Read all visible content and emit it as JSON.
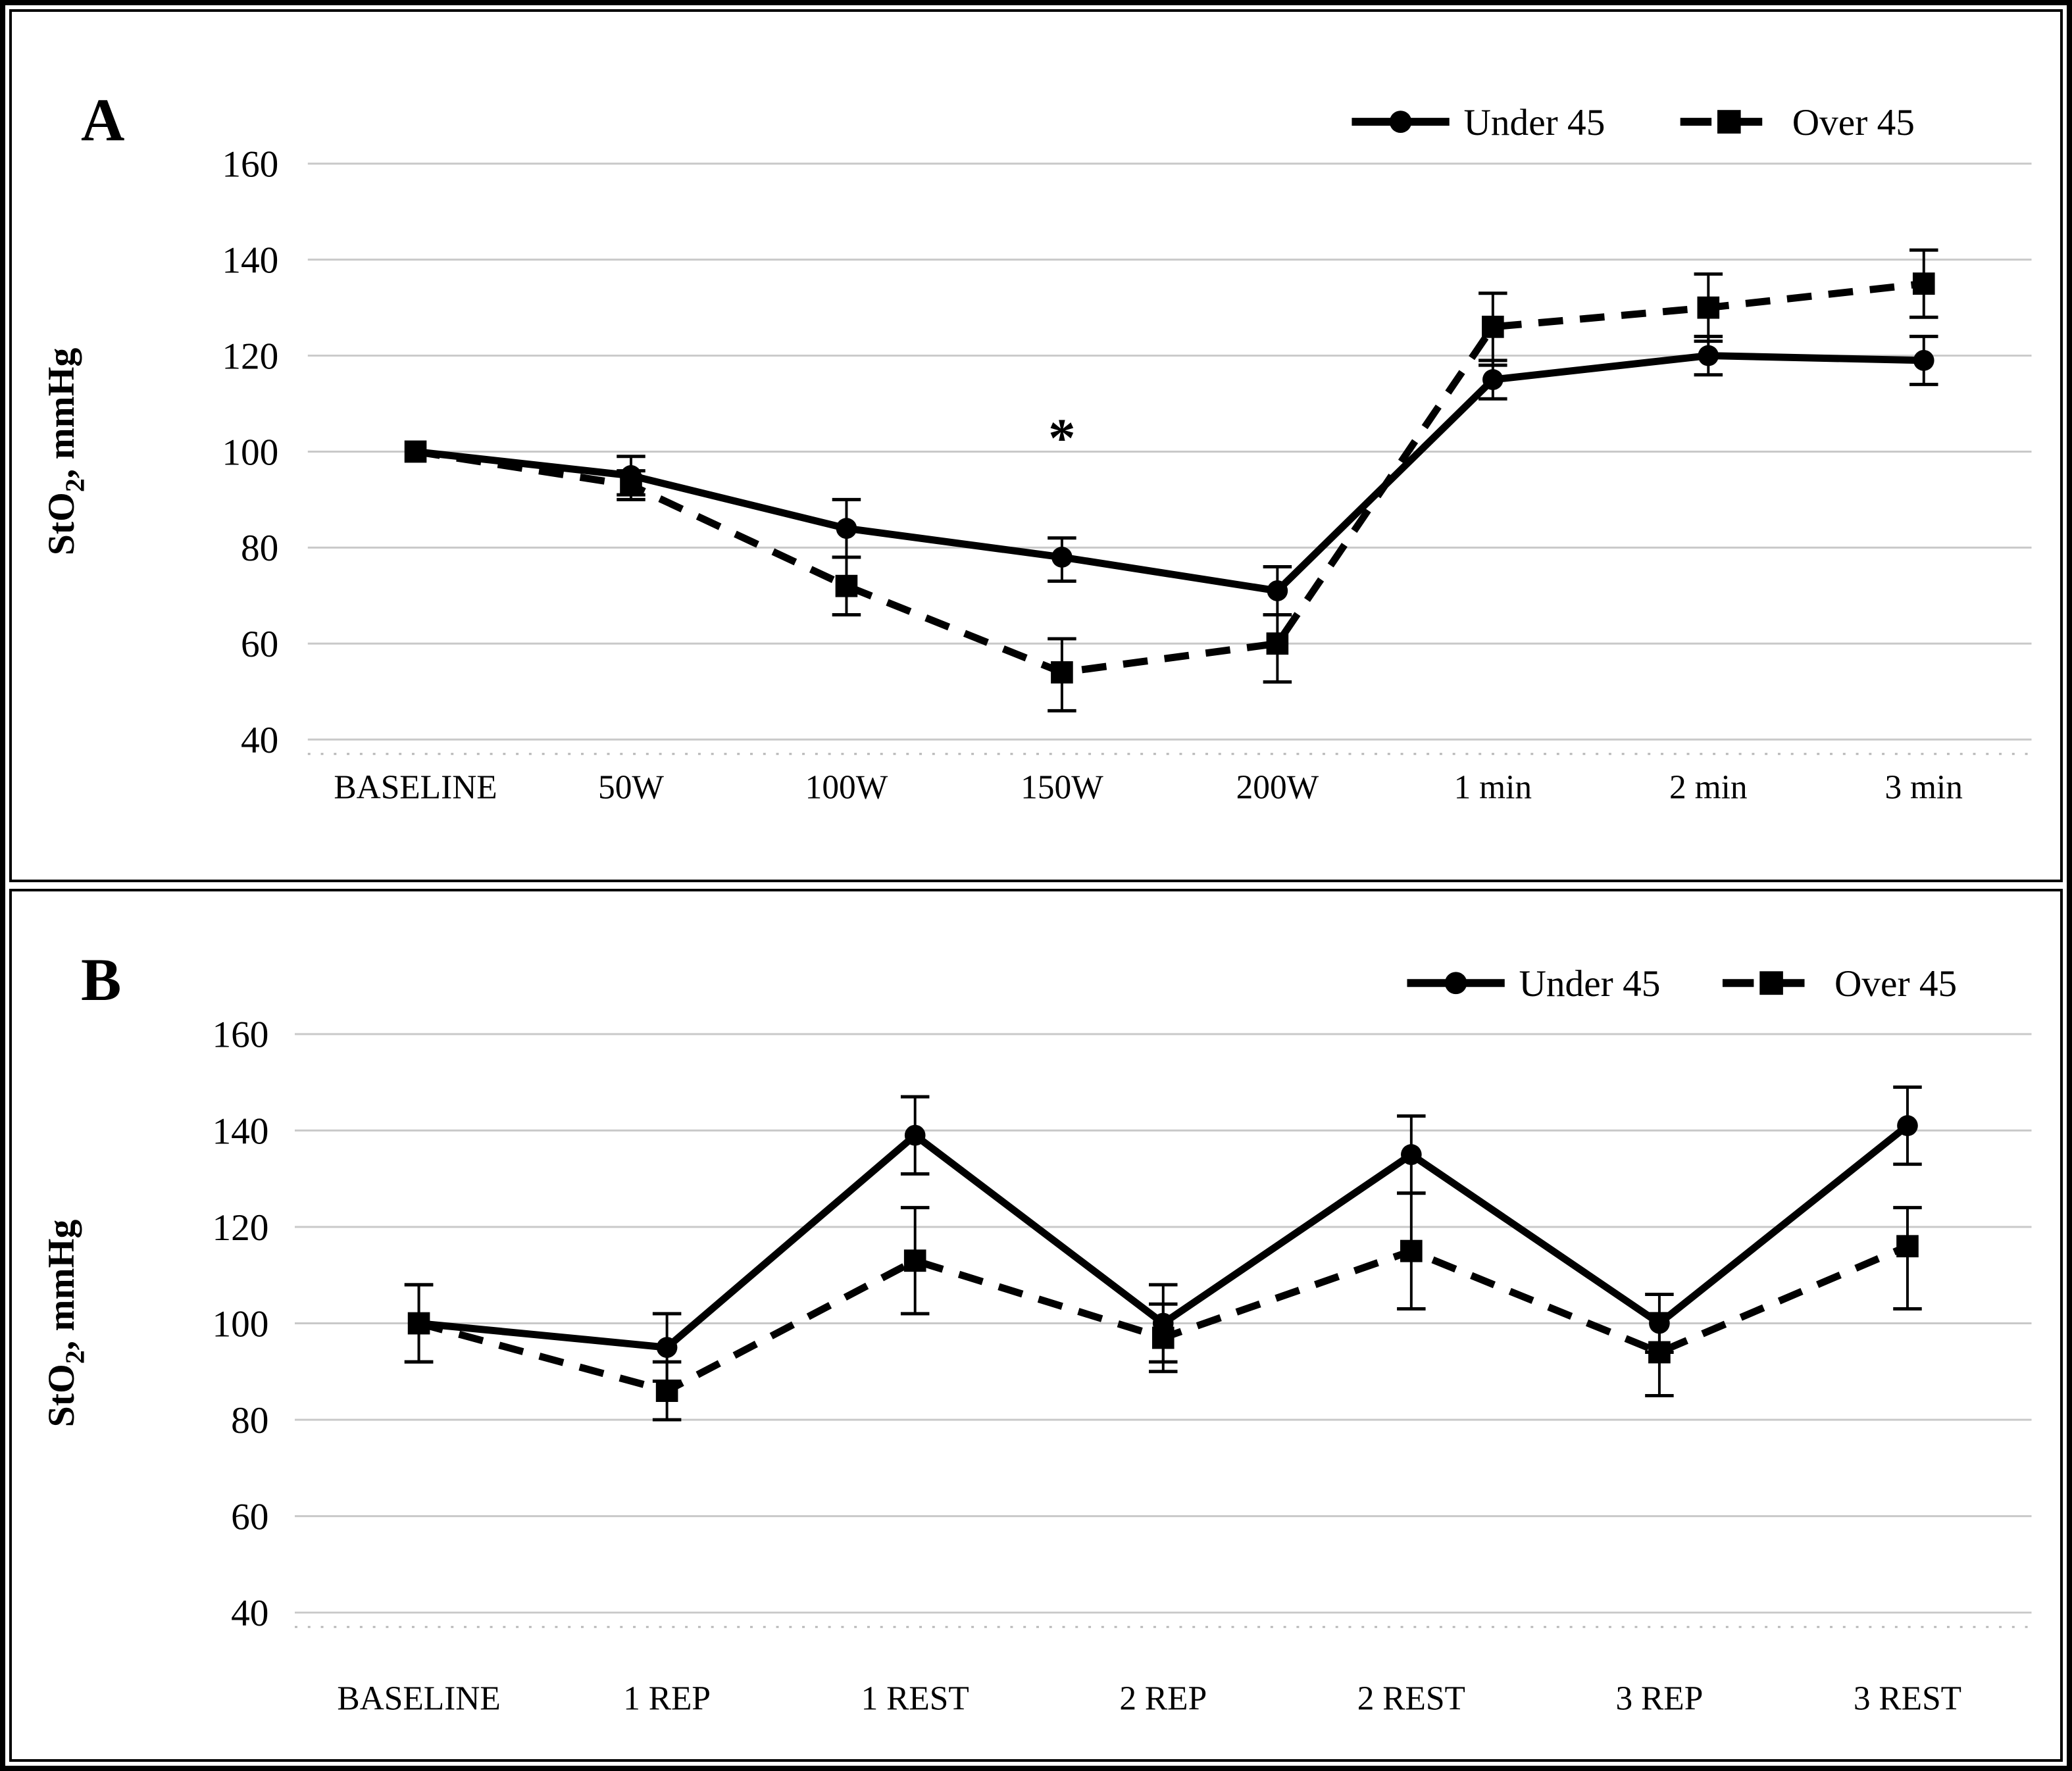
{
  "chart_data": [
    {
      "type": "line",
      "panel_label": "A",
      "ylabel_main": "StO",
      "ylabel_sub": "2",
      "ylabel_rest": ", mmHg",
      "grid": true,
      "legend_position": "top-right",
      "ylim": [
        40,
        160
      ],
      "yticks": [
        160,
        140,
        120,
        100,
        80,
        60,
        40
      ],
      "categories": [
        "BASELINE",
        "50W",
        "100W",
        "150W",
        "200W",
        "1 min",
        "2 min",
        "3 min"
      ],
      "series": [
        {
          "name": "Under 45",
          "style": "solid",
          "marker": "circle",
          "values": [
            100,
            95,
            84,
            78,
            71,
            115,
            120,
            119
          ],
          "err_hi": [
            0,
            4,
            6,
            4,
            5,
            4,
            4,
            5
          ],
          "err_lo": [
            0,
            4,
            6,
            5,
            5,
            4,
            4,
            5
          ]
        },
        {
          "name": "Over 45",
          "style": "dashed",
          "marker": "square",
          "values": [
            100,
            93,
            72,
            54,
            60,
            126,
            130,
            135
          ],
          "err_hi": [
            0,
            3,
            6,
            7,
            6,
            7,
            7,
            7
          ],
          "err_lo": [
            0,
            3,
            6,
            8,
            8,
            8,
            7,
            7
          ]
        }
      ],
      "annotations": [
        {
          "text": "*",
          "category": "150W",
          "category_index": 3,
          "value": 99
        }
      ]
    },
    {
      "type": "line",
      "panel_label": "B",
      "ylabel_main": "StO",
      "ylabel_sub": "2",
      "ylabel_rest": ", mmHg",
      "grid": true,
      "legend_position": "top-right",
      "ylim": [
        40,
        160
      ],
      "yticks": [
        160,
        140,
        120,
        100,
        80,
        60,
        40
      ],
      "categories": [
        "BASELINE",
        "1 REP",
        "1 REST",
        "2 REP",
        "2 REST",
        "3 REP",
        "3 REST"
      ],
      "series": [
        {
          "name": "Under 45",
          "style": "solid",
          "marker": "circle",
          "values": [
            100,
            95,
            139,
            100,
            135,
            100,
            141
          ],
          "err_hi": [
            8,
            7,
            8,
            8,
            8,
            6,
            8
          ],
          "err_lo": [
            8,
            7,
            8,
            8,
            8,
            6,
            8
          ]
        },
        {
          "name": "Over 45",
          "style": "dashed",
          "marker": "square",
          "values": [
            100,
            86,
            113,
            97,
            115,
            94,
            116
          ],
          "err_hi": [
            8,
            6,
            11,
            7,
            12,
            8,
            8
          ],
          "err_lo": [
            8,
            6,
            11,
            7,
            12,
            9,
            13
          ]
        }
      ],
      "annotations": []
    }
  ],
  "colors": {
    "line": "#000000",
    "gridline": "#c9c9c9",
    "axis_dotted": "#b5b5b5",
    "background": "#ffffff",
    "border": "#000000"
  }
}
